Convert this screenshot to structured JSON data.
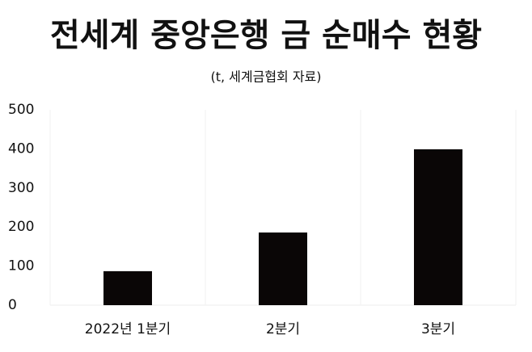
{
  "chart_data": {
    "type": "bar",
    "title": "전세계 중앙은행 금 순매수 현황",
    "subtitle": "(t, 세계금협회 자료)",
    "categories": [
      "2022년 1분기",
      "2분기",
      "3분기"
    ],
    "values": [
      87,
      186,
      399
    ],
    "color": "#0a0606",
    "ylim": [
      0,
      500
    ],
    "yticks": [
      0,
      100,
      200,
      300,
      400,
      500
    ],
    "grid": false
  }
}
